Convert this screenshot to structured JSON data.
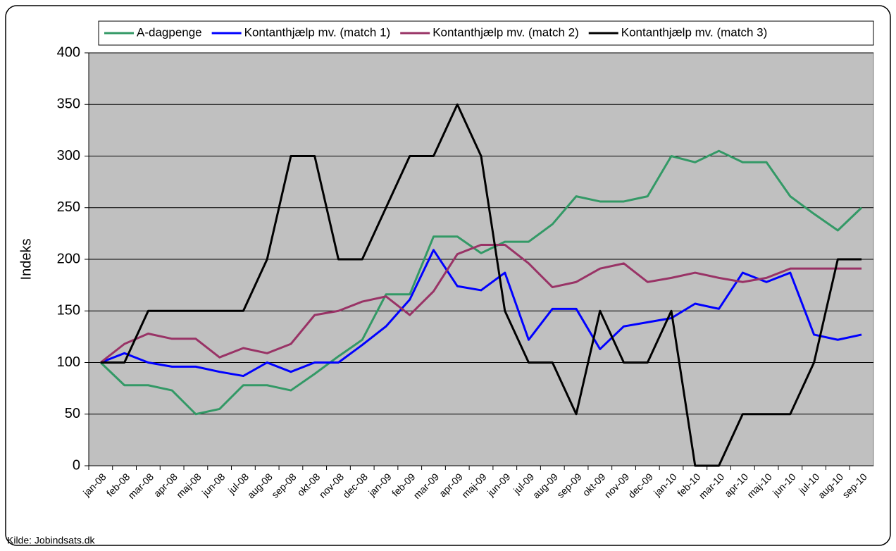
{
  "chart_data": {
    "type": "line",
    "ylabel": "Indeks",
    "source": "Kilde: Jobindsats.dk",
    "categories": [
      "jan-08",
      "feb-08",
      "mar-08",
      "apr-08",
      "maj-08",
      "jun-08",
      "jul-08",
      "aug-08",
      "sep-08",
      "okt-08",
      "nov-08",
      "dec-08",
      "jan-09",
      "feb-09",
      "mar-09",
      "apr-09",
      "maj-09",
      "jun-09",
      "jul-09",
      "aug-09",
      "sep-09",
      "okt-09",
      "nov-09",
      "dec-09",
      "jan-10",
      "feb-10",
      "mar-10",
      "apr-10",
      "maj-10",
      "jun-10",
      "jul-10",
      "aug-10",
      "sep-10"
    ],
    "series": [
      {
        "name": "A-dagpenge",
        "color": "#339966",
        "values": [
          100,
          78,
          78,
          73,
          50,
          55,
          78,
          78,
          73,
          89,
          106,
          122,
          166,
          166,
          222,
          222,
          206,
          217,
          217,
          234,
          261,
          256,
          256,
          261,
          300,
          294,
          305,
          294,
          294,
          261,
          244,
          228,
          250
        ]
      },
      {
        "name": "Kontanthjælp mv. (match 1)",
        "color": "#0000ff",
        "values": [
          100,
          109,
          100,
          96,
          96,
          91,
          87,
          100,
          91,
          100,
          100,
          117,
          135,
          161,
          209,
          174,
          170,
          187,
          122,
          152,
          152,
          113,
          135,
          139,
          143,
          157,
          152,
          187,
          178,
          187,
          127,
          122,
          127
        ]
      },
      {
        "name": "Kontanthjælp mv. (match 2)",
        "color": "#993366",
        "values": [
          100,
          118,
          128,
          123,
          123,
          105,
          114,
          109,
          118,
          146,
          150,
          159,
          164,
          146,
          169,
          205,
          214,
          214,
          196,
          173,
          178,
          191,
          196,
          178,
          182,
          187,
          182,
          178,
          182,
          191,
          191,
          191,
          191
        ]
      },
      {
        "name": "Kontanthjælp mv. (match 3)",
        "color": "#000000",
        "values": [
          100,
          100,
          150,
          150,
          150,
          150,
          150,
          200,
          300,
          300,
          200,
          200,
          250,
          300,
          300,
          350,
          300,
          150,
          100,
          100,
          50,
          150,
          100,
          100,
          150,
          0,
          0,
          50,
          50,
          50,
          100,
          200,
          200
        ]
      }
    ],
    "ylim": [
      0,
      400
    ],
    "yticks": [
      0,
      50,
      100,
      150,
      200,
      250,
      300,
      350,
      400
    ],
    "grid": true,
    "legend": "top"
  }
}
